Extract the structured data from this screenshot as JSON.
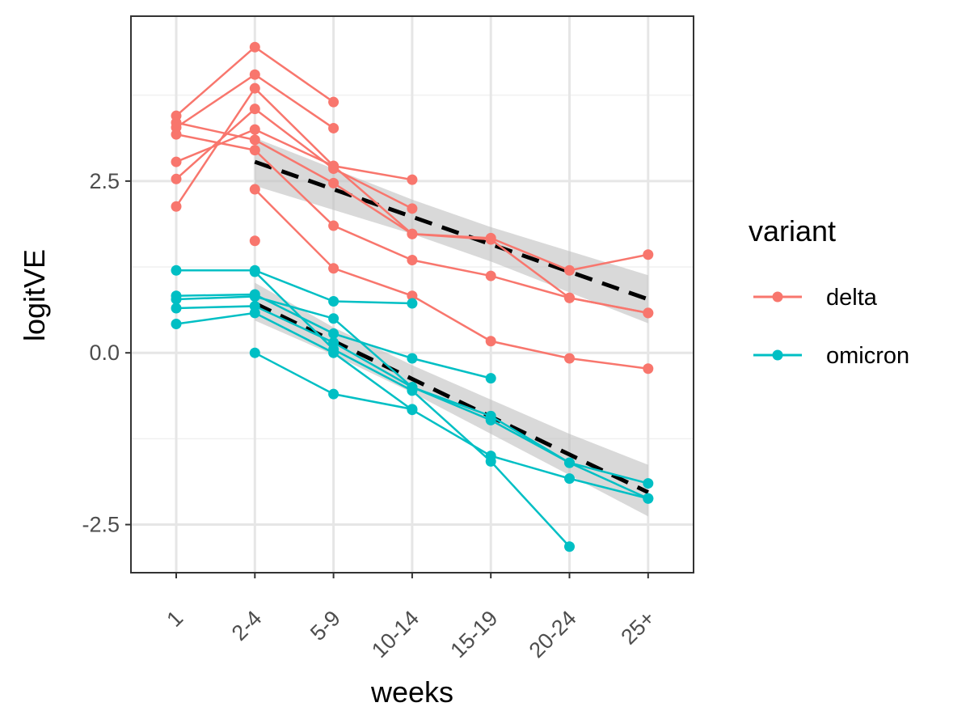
{
  "chart_data": {
    "type": "line",
    "xlabel": "weeks",
    "ylabel": "logitVE",
    "categories": [
      "1",
      "2-4",
      "5-9",
      "10-14",
      "15-19",
      "20-24",
      "25+"
    ],
    "yticks": [
      -2.5,
      0.0,
      2.5
    ],
    "ytick_labels": [
      "-2.5",
      "0.0",
      "2.5"
    ],
    "ylim": [
      -3.2,
      4.9
    ],
    "grid": true,
    "legend": {
      "title": "variant",
      "position": "right",
      "entries": [
        {
          "label": "delta",
          "color": "#F8766D"
        },
        {
          "label": "omicron",
          "color": "#00BFC4"
        }
      ]
    },
    "series": [
      {
        "variant": "delta",
        "values": [
          3.45,
          4.45,
          3.65,
          null,
          null,
          null,
          null
        ]
      },
      {
        "variant": "delta",
        "values": [
          3.28,
          4.05,
          3.27,
          null,
          null,
          null,
          null
        ]
      },
      {
        "variant": "delta",
        "values": [
          2.13,
          3.85,
          2.72,
          2.52,
          null,
          null,
          null
        ]
      },
      {
        "variant": "delta",
        "values": [
          2.53,
          3.55,
          2.68,
          2.1,
          null,
          null,
          null
        ]
      },
      {
        "variant": "delta",
        "values": [
          2.78,
          3.25,
          2.72,
          1.73,
          1.67,
          1.2,
          1.43
        ]
      },
      {
        "variant": "delta",
        "values": [
          3.35,
          3.1,
          2.47,
          1.73,
          1.65,
          0.8,
          0.58
        ]
      },
      {
        "variant": "delta",
        "values": [
          3.18,
          2.95,
          1.85,
          1.35,
          1.12,
          0.8,
          0.58
        ]
      },
      {
        "variant": "delta",
        "values": [
          null,
          2.38,
          1.23,
          0.83,
          0.17,
          -0.08,
          -0.23
        ]
      },
      {
        "variant": "delta",
        "values": [
          null,
          1.63,
          null,
          null,
          null,
          null,
          null
        ]
      },
      {
        "variant": "omicron",
        "values": [
          1.2,
          1.2,
          0.75,
          0.72,
          null,
          null,
          null
        ]
      },
      {
        "variant": "omicron",
        "values": [
          0.83,
          0.85,
          0.28,
          -0.08,
          -0.37,
          null,
          null
        ]
      },
      {
        "variant": "omicron",
        "values": [
          0.78,
          0.82,
          0.5,
          -0.5,
          -0.92,
          -1.6,
          -1.9
        ]
      },
      {
        "variant": "omicron",
        "values": [
          0.65,
          0.68,
          0.15,
          -0.5,
          -0.98,
          -1.6,
          -2.12
        ]
      },
      {
        "variant": "omicron",
        "values": [
          0.42,
          0.58,
          0.0,
          -0.83,
          -1.5,
          -1.83,
          -2.12
        ]
      },
      {
        "variant": "omicron",
        "values": [
          null,
          1.18,
          0.05,
          -0.55,
          -1.58,
          -2.82,
          null
        ]
      },
      {
        "variant": "omicron",
        "values": [
          null,
          0.0,
          -0.6,
          -0.82,
          null,
          null,
          null
        ]
      }
    ],
    "fit_lines": [
      {
        "variant": "delta",
        "values": [
          null,
          2.78,
          2.38,
          1.98,
          1.58,
          1.18,
          0.78
        ],
        "ci_lower": [
          null,
          2.43,
          2.08,
          1.73,
          1.33,
          0.88,
          0.43
        ],
        "ci_upper": [
          null,
          3.13,
          2.68,
          2.23,
          1.83,
          1.48,
          1.13
        ]
      },
      {
        "variant": "omicron",
        "values": [
          null,
          0.72,
          0.17,
          -0.38,
          -0.93,
          -1.48,
          -2.03
        ],
        "ci_lower": [
          null,
          0.47,
          -0.03,
          -0.58,
          -1.18,
          -1.78,
          -2.38
        ],
        "ci_upper": [
          null,
          1.02,
          0.37,
          -0.18,
          -0.68,
          -1.18,
          -1.63
        ]
      }
    ],
    "fit_style": {
      "line_color": "#000000",
      "dash": "dashed",
      "band_color": "#bfbfbf"
    }
  }
}
